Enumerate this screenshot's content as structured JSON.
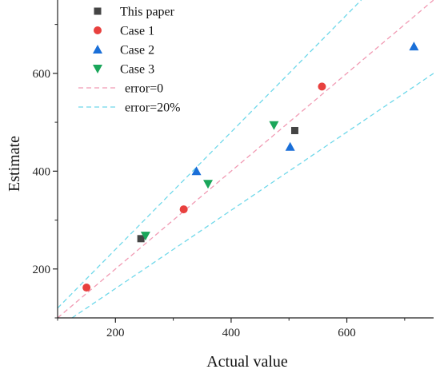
{
  "chart_data": {
    "type": "scatter",
    "title": "",
    "xlabel": "Actual value",
    "ylabel": "Estimate",
    "xlim": [
      100,
      750
    ],
    "ylim": [
      100,
      750
    ],
    "xticks": [
      200,
      400,
      600
    ],
    "yticks": [
      200,
      400,
      600
    ],
    "grid": false,
    "legend_position": "top-left",
    "series": [
      {
        "name": "This paper",
        "marker": "square",
        "color": "#444444",
        "points": [
          [
            244,
            262
          ],
          [
            510,
            483
          ]
        ]
      },
      {
        "name": "Case 1",
        "marker": "circle",
        "color": "#e8403e",
        "points": [
          [
            150,
            162
          ],
          [
            318,
            322
          ],
          [
            557,
            573
          ]
        ]
      },
      {
        "name": "Case 2",
        "marker": "triangle-up",
        "color": "#1a6fd8",
        "points": [
          [
            340,
            400
          ],
          [
            502,
            450
          ],
          [
            716,
            655
          ]
        ]
      },
      {
        "name": "Case 3",
        "marker": "triangle-down",
        "color": "#1aa65a",
        "points": [
          [
            252,
            268
          ],
          [
            360,
            374
          ],
          [
            474,
            494
          ]
        ]
      }
    ],
    "reference_lines": [
      {
        "name": "error=0",
        "color": "#f19ab3",
        "dash": "dashed",
        "segments": [
          [
            [
              100,
              100
            ],
            [
              750,
              750
            ]
          ]
        ]
      },
      {
        "name": "error=20%",
        "color": "#6fd8ea",
        "dash": "dashed",
        "segments": [
          [
            [
              100,
              120
            ],
            [
              625,
              750
            ]
          ],
          [
            [
              125,
              100
            ],
            [
              750,
              600
            ]
          ]
        ]
      }
    ]
  }
}
